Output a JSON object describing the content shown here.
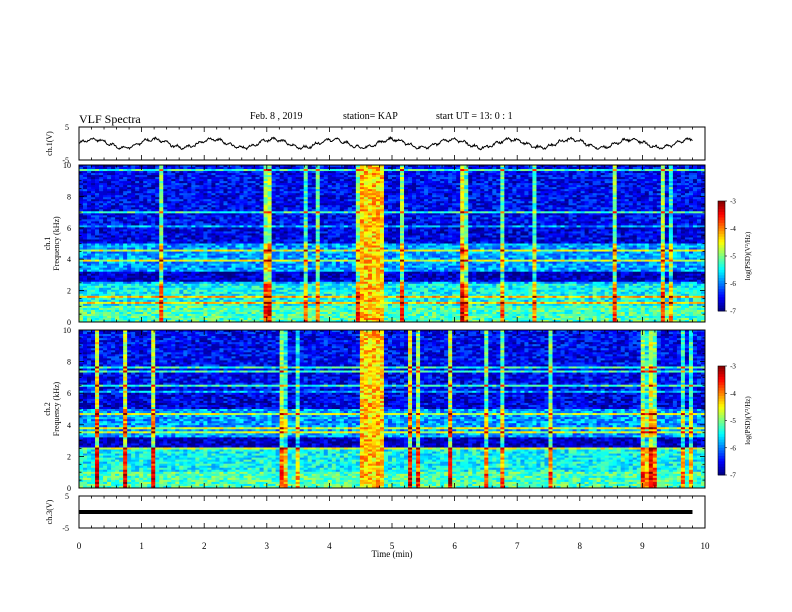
{
  "header": {
    "title": "VLF Spectra",
    "date": "Feb. 8 , 2019",
    "station": "station= KAP",
    "start": "start UT = 13: 0 : 1"
  },
  "chart_data": [
    {
      "type": "line",
      "panel": "ch1-waveform",
      "ylabel": "ch.1(V)",
      "yticks": [
        "5",
        "-5"
      ],
      "ylim": [
        -5,
        5
      ],
      "xlim": [
        0,
        10
      ],
      "x_extent": [
        0,
        9.8
      ]
    },
    {
      "type": "heatmap",
      "panel": "ch1-spectrogram",
      "ylabel": "ch.1 Frequency (kHz)",
      "ylabel_line1": "ch.1",
      "ylabel_line2": "Frequency (kHz)",
      "ylim": [
        0,
        10
      ],
      "yticks": [
        "0",
        "2",
        "4",
        "6",
        "8",
        "10"
      ],
      "xlim": [
        0,
        10
      ],
      "colorbar": {
        "label": "log(PSD)(V²/Hz)",
        "ticks": [
          "-3",
          "-4",
          "-5",
          "-6",
          "-7"
        ],
        "range": [
          -7,
          -3
        ]
      },
      "burst_time": [
        4.5,
        4.9
      ]
    },
    {
      "type": "heatmap",
      "panel": "ch2-spectrogram",
      "ylabel": "ch.2 Frequency (kHz)",
      "ylabel_line1": "ch.2",
      "ylabel_line2": "Frequency (kHz)",
      "ylim": [
        0,
        10
      ],
      "yticks": [
        "0",
        "2",
        "4",
        "6",
        "8",
        "10"
      ],
      "xlim": [
        0,
        10
      ],
      "colorbar": {
        "label": "log(PSD)(V²/Hz)",
        "ticks": [
          "-3",
          "-4",
          "-5",
          "-6",
          "-7"
        ],
        "range": [
          -7,
          -3
        ]
      },
      "burst_time": [
        4.5,
        4.9
      ]
    },
    {
      "type": "line",
      "panel": "ch3-waveform",
      "ylabel": "ch.3(V)",
      "yticks": [
        "5",
        "-5"
      ],
      "ylim": [
        -5,
        5
      ],
      "xlim": [
        0,
        10
      ],
      "x_extent": [
        0,
        9.8
      ],
      "level": 0
    }
  ],
  "xaxis": {
    "label": "Time (min)",
    "ticks": [
      "0",
      "1",
      "2",
      "3",
      "4",
      "5",
      "6",
      "7",
      "8",
      "9",
      "10"
    ]
  }
}
